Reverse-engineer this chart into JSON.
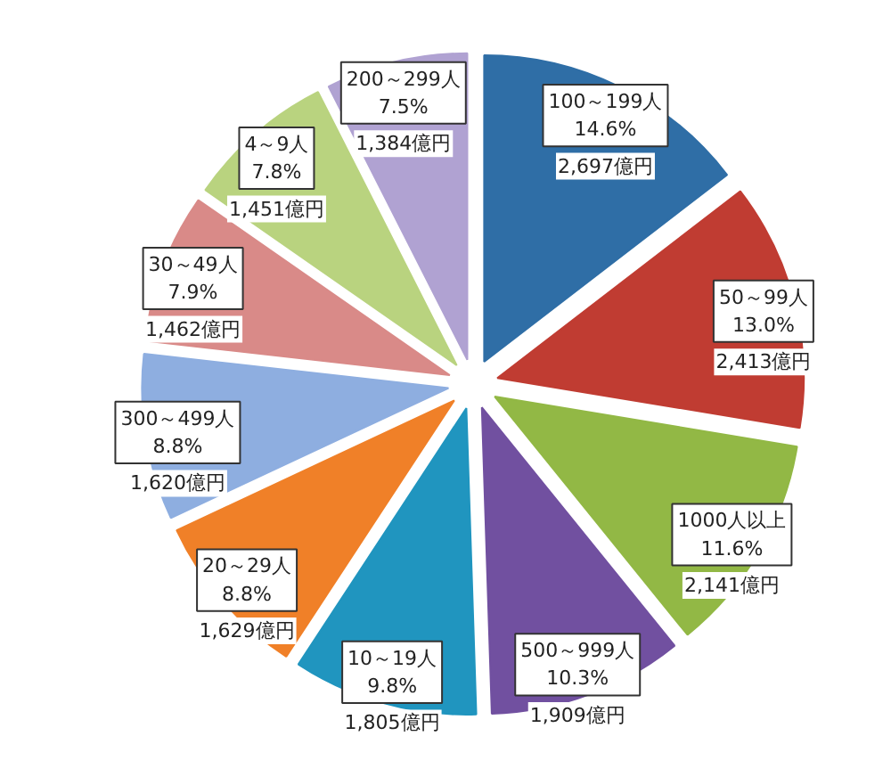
{
  "chart_data": {
    "type": "pie",
    "categories": [
      "100～199人",
      "50～99人",
      "1000人以上",
      "500～999人",
      "10～19人",
      "20～29人",
      "300～499人",
      "30～49人",
      "4～9人",
      "200～299人"
    ],
    "values": [
      2697,
      2413,
      2141,
      1909,
      1805,
      1629,
      1620,
      1462,
      1451,
      1384
    ],
    "colors": [
      "#2f6ea6",
      "#c03c32",
      "#92b845",
      "#7150a0",
      "#2095bf",
      "#f08028",
      "#8eaee0",
      "#d98a88",
      "#b9d37f",
      "#b0a2d2"
    ],
    "value_labels": [
      "14.6%\n2,697億円",
      "13.0%\n2,413億円",
      "11.6%\n2,141億円",
      "10.3%\n1,909億円",
      "9.8%\n1,805億円",
      "8.8%\n1,629億円",
      "8.8%\n1,620億円",
      "7.9%\n1,462億円",
      "7.8%\n1,451億円",
      "7.5%\n1,384億円"
    ]
  }
}
